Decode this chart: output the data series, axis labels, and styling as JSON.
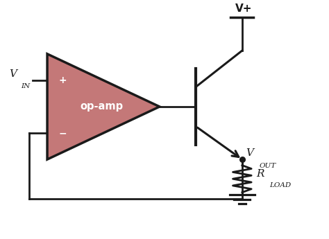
{
  "bg_color": "#ffffff",
  "op_amp_fill": "#c47878",
  "op_amp_edge": "#1a1a1a",
  "wire_color": "#1a1a1a",
  "wire_lw": 2.0,
  "transistor_lw": 2.2,
  "fig_width": 4.74,
  "fig_height": 3.45,
  "label_vin": "V",
  "label_vin_sub": "IN",
  "label_vout": "V",
  "label_vout_sub": "OUT",
  "label_vplus": "V+",
  "label_rload": "R",
  "label_rload_sub": "LOAD",
  "label_opamp": "op-amp",
  "label_plus": "+",
  "label_minus": "−",
  "xmin": 0,
  "xmax": 9.5,
  "ymin": 0,
  "ymax": 7.2
}
